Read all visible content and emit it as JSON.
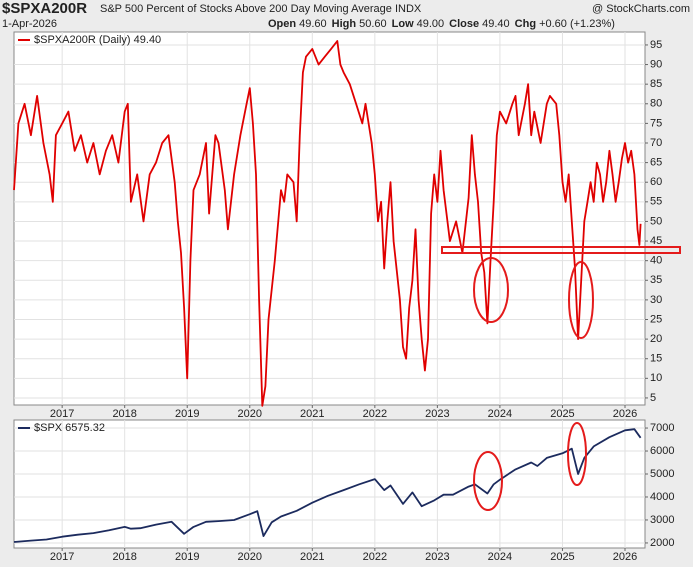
{
  "header": {
    "symbol": "$SPXA200R",
    "title": "S&P 500 Percent of Stocks Above 200 Day Moving Average INDX",
    "source": "@ StockCharts.com",
    "date": "1-Apr-2026",
    "quote": [
      {
        "label": "Open",
        "value": "49.60"
      },
      {
        "label": "High",
        "value": "50.60"
      },
      {
        "label": "Low",
        "value": "49.00"
      },
      {
        "label": "Close",
        "value": "49.40"
      },
      {
        "label": "Chg",
        "value": "+0.60 (+1.23%)"
      }
    ]
  },
  "chart_data": [
    {
      "type": "line",
      "x": [
        2016.23,
        2016.3,
        2016.4,
        2016.5,
        2016.6,
        2016.7,
        2016.8,
        2016.85,
        2016.9,
        2017.0,
        2017.1,
        2017.2,
        2017.3,
        2017.4,
        2017.5,
        2017.6,
        2017.7,
        2017.8,
        2017.9,
        2018.0,
        2018.05,
        2018.1,
        2018.2,
        2018.3,
        2018.4,
        2018.5,
        2018.6,
        2018.7,
        2018.8,
        2018.85,
        2018.9,
        2018.95,
        2019.0,
        2019.05,
        2019.1,
        2019.2,
        2019.3,
        2019.35,
        2019.45,
        2019.5,
        2019.6,
        2019.65,
        2019.75,
        2019.85,
        2019.95,
        2020.0,
        2020.05,
        2020.1,
        2020.15,
        2020.2,
        2020.25,
        2020.3,
        2020.4,
        2020.5,
        2020.55,
        2020.6,
        2020.7,
        2020.75,
        2020.8,
        2020.85,
        2020.9,
        2021.0,
        2021.1,
        2021.2,
        2021.3,
        2021.4,
        2021.45,
        2021.5,
        2021.6,
        2021.7,
        2021.8,
        2021.85,
        2021.95,
        2022.0,
        2022.05,
        2022.1,
        2022.15,
        2022.2,
        2022.25,
        2022.3,
        2022.4,
        2022.45,
        2022.5,
        2022.55,
        2022.6,
        2022.65,
        2022.7,
        2022.75,
        2022.8,
        2022.85,
        2022.9,
        2022.95,
        2023.0,
        2023.05,
        2023.1,
        2023.2,
        2023.3,
        2023.4,
        2023.5,
        2023.55,
        2023.6,
        2023.65,
        2023.7,
        2023.75,
        2023.8,
        2023.85,
        2023.9,
        2023.95,
        2024.0,
        2024.1,
        2024.2,
        2024.25,
        2024.3,
        2024.4,
        2024.45,
        2024.5,
        2024.55,
        2024.65,
        2024.75,
        2024.8,
        2024.9,
        2024.95,
        2025.0,
        2025.05,
        2025.1,
        2025.15,
        2025.2,
        2025.25,
        2025.3,
        2025.35,
        2025.4,
        2025.45,
        2025.5,
        2025.55,
        2025.6,
        2025.65,
        2025.7,
        2025.75,
        2025.8,
        2025.85,
        2025.9,
        2025.95,
        2026.0,
        2026.05,
        2026.1,
        2026.15,
        2026.2,
        2026.23,
        2026.25
      ],
      "series": [
        {
          "name": "$SPXA200R (Daily) 49.40",
          "color": "#e00000",
          "values": [
            58,
            75,
            80,
            72,
            82,
            70,
            62,
            55,
            72,
            75,
            78,
            68,
            72,
            65,
            70,
            62,
            68,
            72,
            65,
            78,
            80,
            55,
            62,
            50,
            62,
            65,
            70,
            72,
            60,
            50,
            42,
            28,
            10,
            40,
            58,
            62,
            70,
            52,
            72,
            70,
            58,
            48,
            62,
            72,
            80,
            84,
            75,
            62,
            30,
            3,
            8,
            25,
            40,
            58,
            55,
            62,
            60,
            50,
            72,
            88,
            92,
            94,
            90,
            92,
            94,
            96,
            90,
            88,
            85,
            80,
            75,
            80,
            70,
            62,
            50,
            55,
            38,
            50,
            60,
            45,
            30,
            18,
            15,
            28,
            35,
            48,
            30,
            20,
            12,
            20,
            52,
            62,
            55,
            68,
            58,
            45,
            50,
            42,
            56,
            72,
            62,
            55,
            42,
            37,
            24,
            40,
            55,
            72,
            78,
            75,
            80,
            82,
            72,
            80,
            85,
            72,
            78,
            70,
            80,
            82,
            80,
            72,
            60,
            55,
            62,
            50,
            38,
            20,
            35,
            50,
            55,
            60,
            55,
            65,
            62,
            55,
            60,
            68,
            62,
            55,
            60,
            66,
            70,
            65,
            68,
            62,
            48,
            44,
            49.4
          ]
        }
      ],
      "xlim": [
        2016.23,
        2026.32
      ],
      "xticks": [
        2017,
        2018,
        2019,
        2020,
        2021,
        2022,
        2023,
        2024,
        2025,
        2026
      ],
      "ylim": [
        3.2,
        98.3
      ],
      "yticks": [
        5,
        10,
        15,
        20,
        25,
        30,
        35,
        40,
        45,
        50,
        55,
        60,
        65,
        70,
        75,
        80,
        85,
        90,
        95
      ],
      "grid": true
    },
    {
      "type": "line",
      "x": [
        2016.23,
        2016.5,
        2016.75,
        2017.0,
        2017.25,
        2017.5,
        2017.75,
        2018.0,
        2018.1,
        2018.25,
        2018.5,
        2018.75,
        2018.95,
        2019.1,
        2019.3,
        2019.5,
        2019.75,
        2020.0,
        2020.12,
        2020.22,
        2020.35,
        2020.5,
        2020.75,
        2021.0,
        2021.25,
        2021.5,
        2021.75,
        2022.0,
        2022.15,
        2022.25,
        2022.45,
        2022.6,
        2022.75,
        2022.95,
        2023.1,
        2023.25,
        2023.5,
        2023.6,
        2023.8,
        2023.9,
        2024.0,
        2024.25,
        2024.5,
        2024.6,
        2024.75,
        2025.0,
        2025.15,
        2025.25,
        2025.35,
        2025.5,
        2025.75,
        2026.0,
        2026.15,
        2026.25
      ],
      "series": [
        {
          "name": "$SPX 6575.32",
          "color": "#1c2b5e",
          "values": [
            2040,
            2100,
            2150,
            2270,
            2360,
            2430,
            2550,
            2700,
            2620,
            2640,
            2800,
            2920,
            2400,
            2700,
            2920,
            2950,
            3000,
            3250,
            3380,
            2300,
            2900,
            3150,
            3400,
            3750,
            4050,
            4300,
            4550,
            4780,
            4300,
            4500,
            3700,
            4200,
            3600,
            3850,
            4100,
            4100,
            4450,
            4550,
            4150,
            4550,
            4750,
            5200,
            5500,
            5350,
            5700,
            5900,
            6100,
            5000,
            5700,
            6200,
            6600,
            6900,
            6950,
            6575.32
          ]
        }
      ],
      "xlim": [
        2016.23,
        2026.32
      ],
      "xticks": [
        2017,
        2018,
        2019,
        2020,
        2021,
        2022,
        2023,
        2024,
        2025,
        2026
      ],
      "ylim": [
        1780,
        7350
      ],
      "yticks": [
        2000,
        3000,
        4000,
        5000,
        6000,
        7000
      ],
      "grid": true
    }
  ]
}
